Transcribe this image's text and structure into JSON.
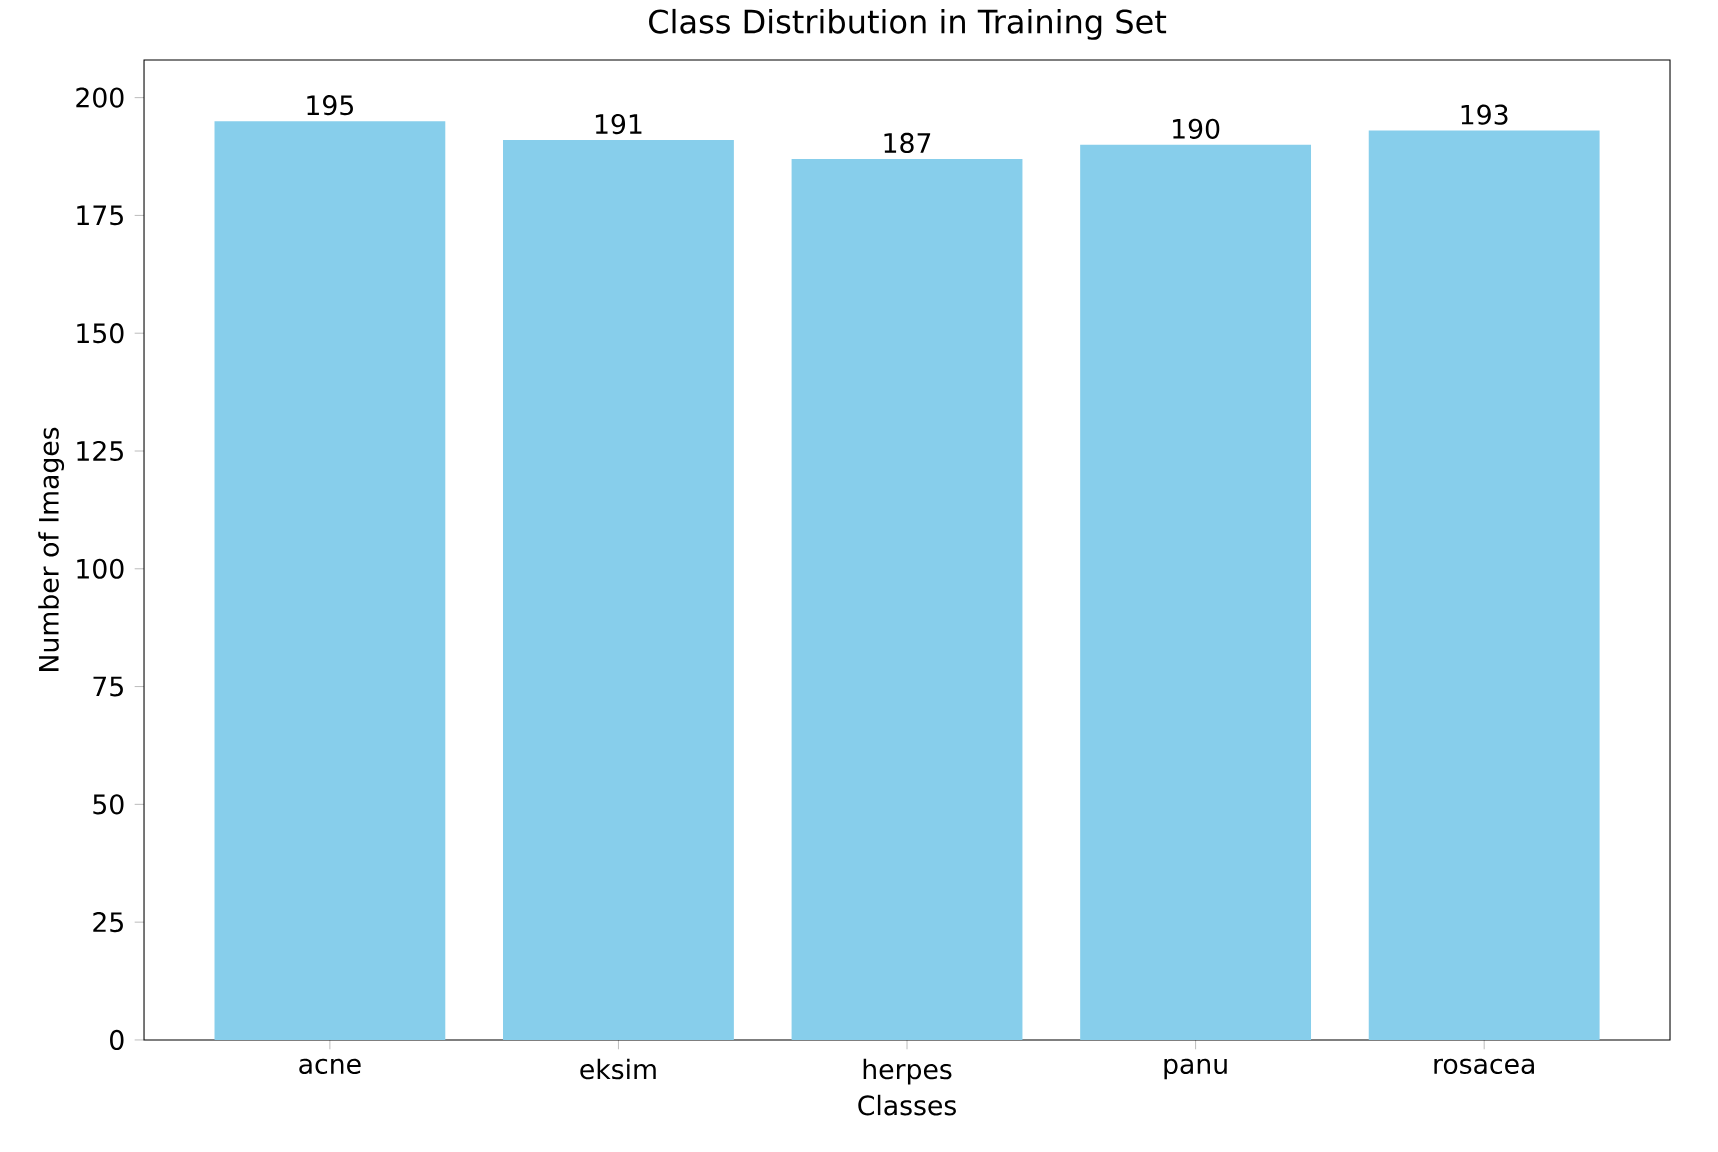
{
  "chart_data": {
    "type": "bar",
    "title": "Class Distribution in Training Set",
    "xlabel": "Classes",
    "ylabel": "Number of Images",
    "categories": [
      "acne",
      "eksim",
      "herpes",
      "panu",
      "rosacea"
    ],
    "values": [
      195,
      191,
      187,
      190,
      193
    ],
    "color": "#87ceeb",
    "ylim": [
      0,
      208
    ],
    "yticks": [
      0,
      25,
      50,
      75,
      100,
      125,
      150,
      175,
      200
    ],
    "data_labels": true
  }
}
